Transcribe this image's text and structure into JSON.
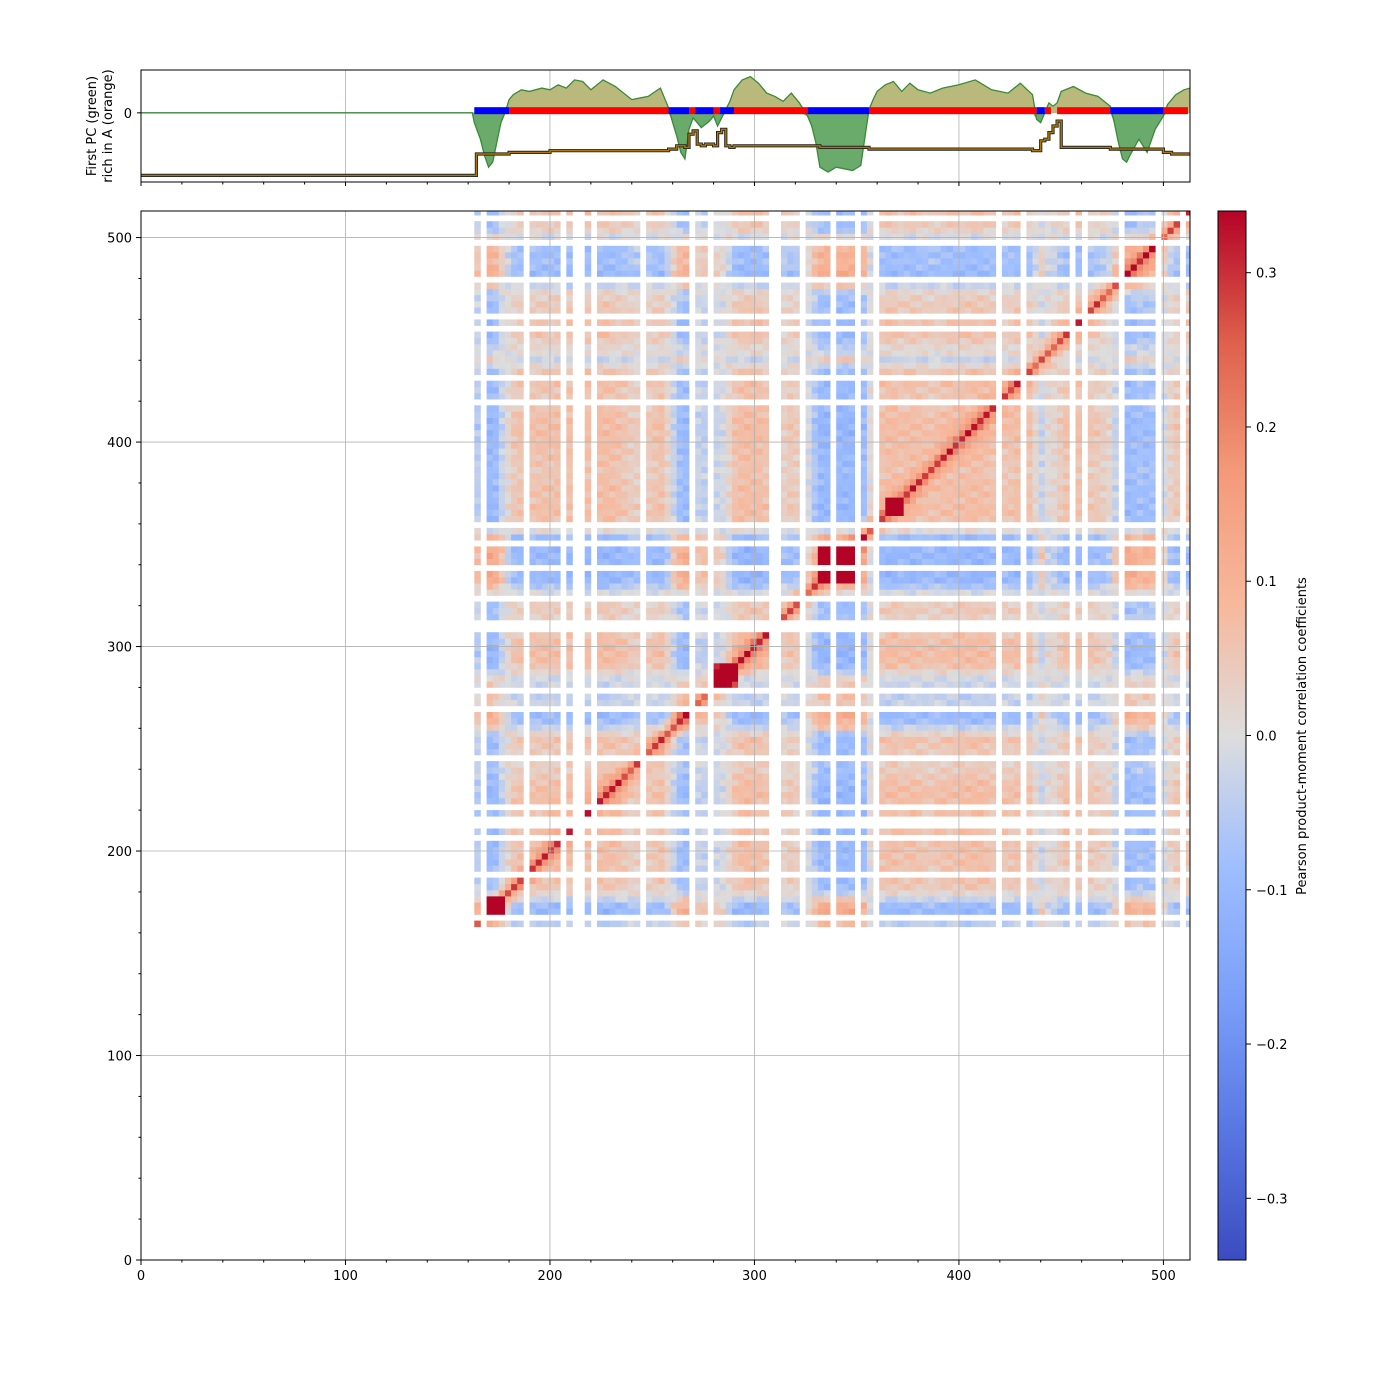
{
  "chart_data": [
    {
      "type": "line",
      "panel": "first-pc-track",
      "ylabel_line1": "First PC (green)",
      "ylabel_line2": "rich in A (orange)",
      "xlim": [
        0,
        513
      ],
      "ylim": [
        -0.42,
        0.26
      ],
      "yticks": [
        0
      ],
      "grid": true,
      "colors": {
        "pc_positive_fill": "#b8b97a",
        "pc_negative_fill": "#6aaa6a",
        "pc_line": "#3a8a3a",
        "rich_in_a_line": "#b07800",
        "a_compartment": "#ff0000",
        "b_compartment": "#0000ff"
      },
      "first_pc": {
        "x": [
          0,
          162,
          163,
          166,
          168,
          170,
          172,
          174,
          176,
          178,
          180,
          182,
          186,
          190,
          196,
          200,
          204,
          208,
          212,
          216,
          220,
          226,
          232,
          240,
          248,
          254,
          258,
          260,
          262,
          264,
          266,
          268,
          270,
          272,
          274,
          276,
          278,
          280,
          282,
          284,
          286,
          288,
          290,
          294,
          298,
          302,
          306,
          310,
          314,
          318,
          322,
          326,
          328,
          330,
          332,
          336,
          340,
          344,
          348,
          352,
          356,
          358,
          360,
          364,
          368,
          372,
          376,
          380,
          386,
          392,
          400,
          408,
          416,
          424,
          430,
          436,
          438,
          440,
          442,
          444,
          446,
          448,
          450,
          456,
          462,
          468,
          474,
          476,
          478,
          480,
          482,
          484,
          488,
          492,
          496,
          500,
          502,
          506,
          510,
          513
        ],
        "values": [
          0,
          0,
          -0.06,
          -0.16,
          -0.26,
          -0.33,
          -0.3,
          -0.18,
          -0.06,
          0.0,
          0.08,
          0.11,
          0.14,
          0.13,
          0.15,
          0.14,
          0.17,
          0.15,
          0.2,
          0.19,
          0.14,
          0.2,
          0.16,
          0.08,
          0.1,
          0.15,
          0.03,
          -0.06,
          -0.14,
          -0.24,
          -0.28,
          -0.1,
          -0.03,
          -0.06,
          -0.09,
          -0.07,
          -0.05,
          -0.02,
          -0.08,
          -0.03,
          0.02,
          0.07,
          0.14,
          0.2,
          0.22,
          0.18,
          0.12,
          0.1,
          0.07,
          0.12,
          0.06,
          -0.02,
          -0.08,
          -0.18,
          -0.33,
          -0.36,
          -0.33,
          -0.34,
          -0.35,
          -0.32,
          0.02,
          0.08,
          0.13,
          0.17,
          0.19,
          0.13,
          0.18,
          0.14,
          0.12,
          0.15,
          0.17,
          0.2,
          0.14,
          0.12,
          0.18,
          0.11,
          -0.04,
          -0.06,
          0.0,
          0.06,
          0.04,
          0.06,
          0.13,
          0.16,
          0.12,
          0.1,
          0.04,
          -0.06,
          -0.18,
          -0.28,
          -0.3,
          -0.25,
          -0.16,
          -0.24,
          -0.1,
          -0.02,
          0.05,
          0.11,
          0.14,
          0.15
        ]
      },
      "rich_in_a": {
        "x": [
          0,
          162,
          164,
          178,
          180,
          182,
          190,
          200,
          216,
          240,
          258,
          262,
          266,
          268,
          270,
          272,
          274,
          276,
          278,
          280,
          282,
          284,
          286,
          288,
          290,
          298,
          326,
          332,
          356,
          400,
          436,
          440,
          442,
          444,
          446,
          448,
          450,
          456,
          474,
          480,
          500,
          504,
          513
        ],
        "values": [
          -0.38,
          -0.38,
          -0.25,
          -0.25,
          -0.24,
          -0.24,
          -0.24,
          -0.23,
          -0.23,
          -0.23,
          -0.22,
          -0.2,
          -0.21,
          -0.13,
          -0.11,
          -0.19,
          -0.2,
          -0.19,
          -0.19,
          -0.2,
          -0.12,
          -0.1,
          -0.2,
          -0.21,
          -0.2,
          -0.2,
          -0.2,
          -0.21,
          -0.22,
          -0.22,
          -0.23,
          -0.17,
          -0.16,
          -0.12,
          -0.08,
          -0.05,
          -0.21,
          -0.21,
          -0.22,
          -0.22,
          -0.24,
          -0.25,
          -0.25
        ]
      },
      "compartments": {
        "A": [
          [
            180,
            258
          ],
          [
            268,
            271
          ],
          [
            280,
            283
          ],
          [
            290,
            326
          ],
          [
            356,
            438
          ],
          [
            442,
            445
          ],
          [
            448,
            474
          ],
          [
            500,
            512
          ]
        ],
        "B": [
          [
            163,
            180
          ],
          [
            258,
            268
          ],
          [
            271,
            280
          ],
          [
            283,
            290
          ],
          [
            326,
            356
          ],
          [
            438,
            442
          ],
          [
            474,
            500
          ]
        ]
      }
    },
    {
      "type": "heatmap",
      "panel": "correlation-matrix",
      "xlim": [
        0,
        513
      ],
      "ylim": [
        0,
        513
      ],
      "xticks": [
        0,
        100,
        200,
        300,
        400,
        500
      ],
      "yticks": [
        0,
        100,
        200,
        300,
        400,
        500
      ],
      "grid": true,
      "data_range": [
        163,
        512
      ],
      "diagonal_strong_blocks": [
        [
          330,
          352
        ],
        [
          364,
          372
        ],
        [
          280,
          292
        ],
        [
          168,
          176
        ]
      ],
      "masked_bins": [
        166,
        170,
        177,
        186,
        187,
        198,
        203,
        205,
        211,
        212,
        214,
        215,
        218,
        220,
        221,
        244,
        246,
        248,
        251,
        254,
        264,
        268,
        277,
        282,
        285,
        290,
        307,
        310,
        312,
        322,
        337,
        349,
        358,
        377,
        381,
        386,
        392,
        404,
        414,
        416,
        418,
        422,
        430,
        440,
        446,
        454,
        458,
        460,
        464,
        470,
        478,
        496,
        500,
        503,
        508
      ]
    }
  ],
  "colorbar": {
    "label": "Pearson product-moment correlation coefficients",
    "vmin": -0.34,
    "vmax": 0.34,
    "ticks": [
      -0.3,
      -0.2,
      -0.1,
      0.0,
      0.1,
      0.2,
      0.3
    ],
    "tick_labels": [
      "−0.3",
      "−0.2",
      "−0.1",
      "0.0",
      "0.1",
      "0.2",
      "0.3"
    ],
    "colormap": "coolwarm"
  }
}
